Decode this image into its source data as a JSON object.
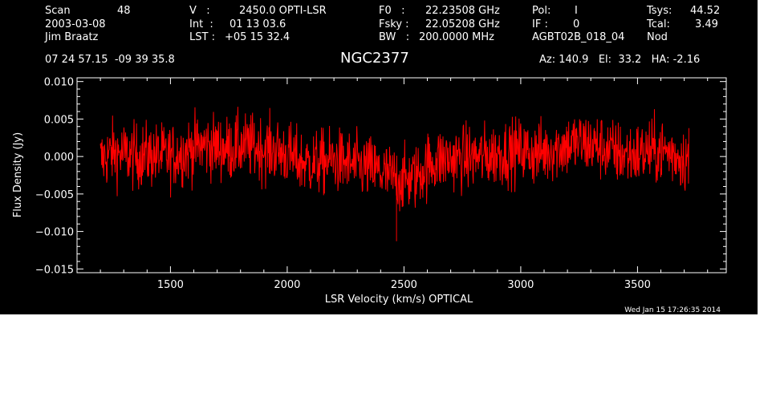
{
  "header": {
    "scan_label": "Scan",
    "scan_value": "48",
    "date": "2003-03-08",
    "observer": "Jim Braatz",
    "v_label": "V   :",
    "v_value": "2450.0 OPTI-LSR",
    "int_label": "Int  :",
    "int_value": "01 13 03.6",
    "lst_label": "LST :",
    "lst_value": "+05 15 32.4",
    "f0_label": "F0   :",
    "f0_value": "22.23508 GHz",
    "fsky_label": "Fsky :",
    "fsky_value": "22.05208 GHz",
    "bw_label": "BW   :",
    "bw_value": "200.0000 MHz",
    "pol_label": "Pol:",
    "pol_value": "I",
    "if_label": "IF :",
    "if_value": "0",
    "project": "AGBT02B_018_04",
    "tsys_label": "Tsys:",
    "tsys_value": "44.52",
    "tcal_label": "Tcal:",
    "tcal_value": "3.49",
    "mode": "Nod",
    "coords": "07 24 57.15  -09 39 35.8",
    "source": "NGC2377",
    "pointing": "Az: 140.9   El:  33.2   HA: -2.16",
    "timestamp": "Wed Jan 15 17:26:35 2014"
  },
  "chart_data": {
    "type": "line",
    "title": "NGC2377",
    "xlabel": "LSR Velocity (km/s) OPTICAL",
    "ylabel": "Flux Density (Jy)",
    "xlim": [
      1100,
      3880
    ],
    "ylim": [
      -0.0155,
      0.0105
    ],
    "x_ticks": [
      1500,
      2000,
      2500,
      3000,
      3500
    ],
    "x_tick_labels": [
      "1500",
      "2000",
      "2500",
      "3000",
      "3500"
    ],
    "y_ticks": [
      0.01,
      0.005,
      0.0,
      -0.005,
      -0.01,
      -0.015
    ],
    "y_tick_labels": [
      "0.010",
      "0.005",
      "0.000",
      "−0.005",
      "−0.010",
      "−0.015"
    ],
    "grid": false,
    "series": [
      {
        "color": "#ff0000",
        "x": [
          1200,
          1250,
          1300,
          1350,
          1400,
          1450,
          1500,
          1550,
          1600,
          1650,
          1700,
          1750,
          1800,
          1850,
          1900,
          1950,
          2000,
          2050,
          2100,
          2150,
          2200,
          2250,
          2300,
          2350,
          2400,
          2450,
          2500,
          2550,
          2600,
          2650,
          2700,
          2750,
          2800,
          2850,
          2900,
          2950,
          3000,
          3050,
          3100,
          3150,
          3200,
          3250,
          3300,
          3350,
          3400,
          3450,
          3500,
          3550,
          3600,
          3650,
          3700,
          3720
        ],
        "y": [
          -0.0005,
          0.0005,
          0.0003,
          0.0,
          0.0002,
          0.0001,
          0.0,
          0.0005,
          0.0012,
          0.0015,
          0.0012,
          0.001,
          0.0014,
          0.0013,
          0.001,
          0.0008,
          0.0003,
          -0.0007,
          -0.0009,
          -0.0008,
          -0.0005,
          -0.0009,
          -0.0013,
          -0.0015,
          -0.0022,
          -0.0028,
          -0.0032,
          -0.0027,
          -0.0012,
          -0.0004,
          -0.0003,
          -0.0002,
          -0.0001,
          0.0,
          0.0004,
          0.0006,
          0.0008,
          0.0004,
          0.0006,
          0.0012,
          0.0015,
          0.0018,
          0.0016,
          0.0012,
          0.0006,
          0.0002,
          0.0003,
          0.0006,
          0.0008,
          0.0004,
          -0.0002,
          -0.0004
        ],
        "noise_rms": 0.0022,
        "min": -0.0113,
        "max": 0.0068
      }
    ]
  }
}
